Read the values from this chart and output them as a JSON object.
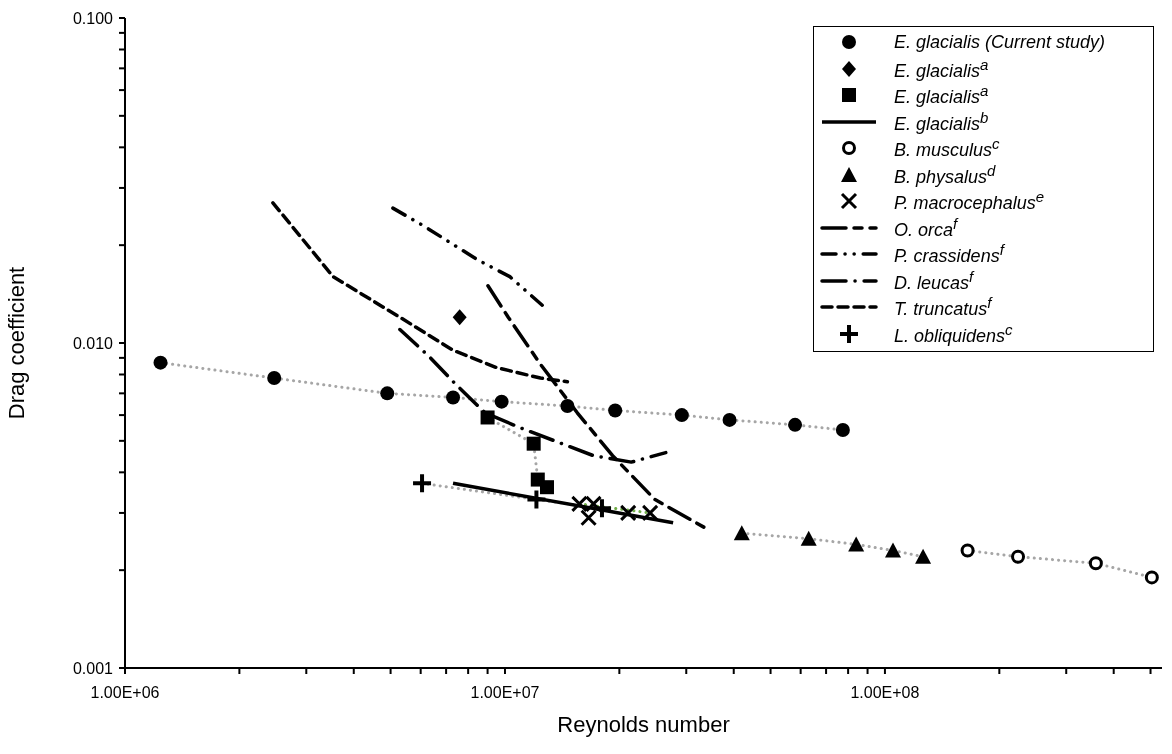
{
  "chart_data": {
    "type": "scatter",
    "xlabel": "Reynolds number",
    "ylabel": "Drag coefficient",
    "log": "xy",
    "grid": false,
    "legend": "top right",
    "xlim": [
      1000000,
      536000000
    ],
    "xticks": [
      {
        "value": 1000000,
        "label": "1.00E+06"
      },
      {
        "value": 2000000,
        "label": null
      },
      {
        "value": 3000000,
        "label": null
      },
      {
        "value": 4000000,
        "label": null
      },
      {
        "value": 5000000,
        "label": null
      },
      {
        "value": 6000000,
        "label": null
      },
      {
        "value": 7000000,
        "label": null
      },
      {
        "value": 8000000,
        "label": null
      },
      {
        "value": 9000000,
        "label": null
      },
      {
        "value": 10000000,
        "label": "1.00E+07"
      },
      {
        "value": 20000000,
        "label": null
      },
      {
        "value": 30000000,
        "label": null
      },
      {
        "value": 40000000,
        "label": null
      },
      {
        "value": 50000000,
        "label": null
      },
      {
        "value": 60000000,
        "label": null
      },
      {
        "value": 70000000,
        "label": null
      },
      {
        "value": 80000000,
        "label": null
      },
      {
        "value": 90000000,
        "label": null
      },
      {
        "value": 100000000,
        "label": "1.00E+08"
      },
      {
        "value": 200000000,
        "label": null
      },
      {
        "value": 300000000,
        "label": null
      },
      {
        "value": 400000000,
        "label": null
      },
      {
        "value": 500000000,
        "label": null
      }
    ],
    "ylim": [
      0.001,
      0.1
    ],
    "yticks": [
      {
        "value": 0.001,
        "label": "0.001"
      },
      {
        "value": 0.002,
        "label": null
      },
      {
        "value": 0.003,
        "label": null
      },
      {
        "value": 0.004,
        "label": null
      },
      {
        "value": 0.005,
        "label": null
      },
      {
        "value": 0.006,
        "label": null
      },
      {
        "value": 0.007,
        "label": null
      },
      {
        "value": 0.008,
        "label": null
      },
      {
        "value": 0.009,
        "label": null
      },
      {
        "value": 0.01,
        "label": "0.010"
      },
      {
        "value": 0.02,
        "label": null
      },
      {
        "value": 0.03,
        "label": null
      },
      {
        "value": 0.04,
        "label": null
      },
      {
        "value": 0.05,
        "label": null
      },
      {
        "value": 0.06,
        "label": null
      },
      {
        "value": 0.07,
        "label": null
      },
      {
        "value": 0.08,
        "label": null
      },
      {
        "value": 0.09,
        "label": null
      },
      {
        "value": 0.1,
        "label": "0.100"
      }
    ],
    "series": [
      {
        "type": "line",
        "color": "#a6a6a6",
        "line_style": "dotted",
        "marker": "none",
        "x": [
          1240000,
          2470000,
          4900000,
          7300000,
          9800000,
          14600000,
          19500000,
          29200000,
          39000000,
          58000000,
          77500000
        ],
        "values": [
          0.0087,
          0.0078,
          0.007,
          0.0068,
          0.0066,
          0.0064,
          0.0062,
          0.006,
          0.0058,
          0.0056,
          0.0054
        ]
      },
      {
        "type": "line",
        "color": "#a6a6a6",
        "line_style": "dotted",
        "marker": "none",
        "x": [
          9000000,
          11900000,
          12200000,
          12900000
        ],
        "values": [
          0.0059,
          0.0049,
          0.0038,
          0.0036
        ]
      },
      {
        "type": "line",
        "color": "#a6a6a6",
        "line_style": "dotted",
        "marker": "none",
        "x": [
          6050000,
          12100000,
          18000000
        ],
        "values": [
          0.0037,
          0.0033,
          0.0031
        ]
      },
      {
        "type": "line",
        "color": "#a6a6a6",
        "line_style": "dotted",
        "marker": "none",
        "x": [
          42000000,
          63000000,
          84000000,
          105000000,
          126000000
        ],
        "values": [
          0.0026,
          0.0025,
          0.0024,
          0.0023,
          0.0022
        ]
      },
      {
        "type": "line",
        "color": "#a6a6a6",
        "line_style": "dotted",
        "marker": "none",
        "x": [
          165000000,
          224000000,
          359000000,
          504000000
        ],
        "values": [
          0.0023,
          0.0022,
          0.0021,
          0.0019
        ]
      },
      {
        "type": "line",
        "color": "#70ad47",
        "line_style": "dotted",
        "marker": "none",
        "x": [
          15700000,
          24100000
        ],
        "values": [
          0.0032,
          0.003
        ]
      },
      {
        "name": "E. glacialis (Current study)",
        "type": "scatter",
        "color": "#000000",
        "marker": "circle",
        "x": [
          1240000,
          2470000,
          4900000,
          7300000,
          9800000,
          14600000,
          19500000,
          29200000,
          39000000,
          58000000,
          77500000
        ],
        "values": [
          0.0087,
          0.0078,
          0.007,
          0.0068,
          0.0066,
          0.0064,
          0.0062,
          0.006,
          0.0058,
          0.0056,
          0.0054
        ]
      },
      {
        "name": "E. glacialis$^{a}$",
        "type": "scatter",
        "color": "#000000",
        "marker": "diamond",
        "x": [
          7600000
        ],
        "values": [
          0.012
        ]
      },
      {
        "name": "E. glacialis$^{a}$",
        "type": "scatter",
        "color": "#000000",
        "marker": "square",
        "x": [
          9000000,
          11900000,
          12200000,
          12900000
        ],
        "values": [
          0.0059,
          0.0049,
          0.0038,
          0.0036
        ]
      },
      {
        "name": "E. glacialis$^{b}$",
        "type": "line",
        "color": "#000000",
        "marker": "none",
        "line_style": "solid",
        "x": [
          7300000,
          27700000
        ],
        "values": [
          0.0037,
          0.0028
        ]
      },
      {
        "name": "B. musculus$^{c}$",
        "type": "scatter",
        "color": "#000000",
        "marker": "circle_open",
        "x": [
          165000000,
          224000000,
          359000000,
          504000000
        ],
        "values": [
          0.0023,
          0.0022,
          0.0021,
          0.0019
        ]
      },
      {
        "name": "B. physalus$^{d}$",
        "type": "scatter",
        "color": "#000000",
        "marker": "triangle",
        "x": [
          42000000,
          63000000,
          84000000,
          105000000,
          126000000
        ],
        "values": [
          0.0026,
          0.0025,
          0.0024,
          0.0023,
          0.0022
        ]
      },
      {
        "name": "P. macrocephalus$^{e}$",
        "type": "scatter",
        "color": "#000000",
        "marker": "cross",
        "x": [
          15700000,
          17100000,
          16600000,
          21100000,
          24100000
        ],
        "values": [
          0.0032,
          0.0032,
          0.0029,
          0.003,
          0.003
        ]
      },
      {
        "name": "O. orca$^{f}$",
        "type": "line",
        "color": "#000000",
        "marker": "none",
        "line_style": "longdashdash",
        "x": [
          9020000,
          10200000,
          12400000,
          15500000,
          19200000,
          24800000,
          33600000
        ],
        "values": [
          0.015,
          0.012,
          0.0086,
          0.0061,
          0.0045,
          0.0033,
          0.0027
        ]
      },
      {
        "name": "P. crassidens$^{f}$",
        "type": "line",
        "color": "#000000",
        "marker": "none",
        "line_style": "dashdotdot",
        "x": [
          5070000,
          6080000,
          8490000,
          10300000,
          12600000
        ],
        "values": [
          0.026,
          0.023,
          0.018,
          0.016,
          0.013
        ]
      },
      {
        "name": "D. leucas$^{f}$",
        "type": "line",
        "color": "#000000",
        "marker": "none",
        "line_style": "longdashdot",
        "x": [
          5290000,
          6310000,
          7390000,
          8860000,
          10900000,
          13500000,
          17100000,
          21500000,
          26500000
        ],
        "values": [
          0.011,
          0.0091,
          0.0075,
          0.0061,
          0.0055,
          0.005,
          0.0045,
          0.0043,
          0.0046
        ]
      },
      {
        "name": "T. truncatus$^{f}$",
        "type": "line",
        "color": "#000000",
        "marker": "none",
        "line_style": "dashed",
        "x": [
          2450000,
          3530000,
          5290000,
          7300000,
          9500000,
          12400000,
          14600000
        ],
        "values": [
          0.027,
          0.016,
          0.012,
          0.0095,
          0.0084,
          0.0078,
          0.0076
        ]
      },
      {
        "name": "L. obliquidens$^{c}$",
        "type": "scatter",
        "color": "#000000",
        "marker": "plus",
        "x": [
          6050000,
          12100000,
          18000000
        ],
        "values": [
          0.0037,
          0.0033,
          0.0031
        ]
      }
    ]
  }
}
